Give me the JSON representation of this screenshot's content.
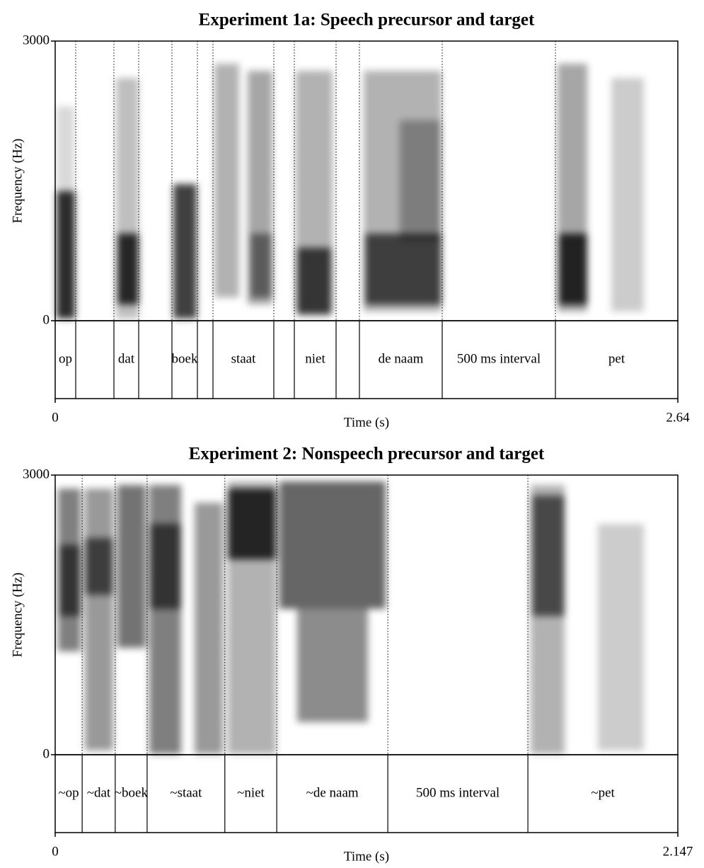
{
  "chart_data": [
    {
      "type": "spectrogram",
      "title": "Experiment 1a: Speech precursor and target",
      "ylabel": "Frequency (Hz)",
      "xlabel": "Time (s)",
      "xlim": [
        0,
        2.64
      ],
      "ylim": [
        0,
        3000
      ],
      "xticks": [
        0,
        2.64
      ],
      "yticks": [
        0,
        3000
      ],
      "boundaries": [
        0.087,
        0.249,
        0.354,
        0.495,
        0.603,
        0.669,
        0.927,
        1.014,
        1.191,
        1.29,
        1.641,
        2.121
      ],
      "intervals": [
        "op",
        null,
        "dat",
        null,
        "boek",
        null,
        "staat",
        null,
        "niet",
        null,
        "de naam",
        "500 ms interval",
        "pet"
      ]
    },
    {
      "type": "spectrogram",
      "title": "Experiment 2: Nonspeech precursor and target",
      "ylabel": "Frequency (Hz)",
      "xlabel": "Time (s)",
      "xlim": [
        0,
        2.147
      ],
      "ylim": [
        0,
        3000
      ],
      "xticks": [
        0,
        2.147
      ],
      "yticks": [
        0,
        3000
      ],
      "boundaries": [
        0.093,
        0.207,
        0.317,
        0.585,
        0.764,
        1.147,
        1.63
      ],
      "intervals": [
        "~op",
        "~dat",
        "~boek",
        "~staat",
        "~niet",
        "~de naam",
        "500 ms interval",
        "~pet"
      ]
    }
  ]
}
